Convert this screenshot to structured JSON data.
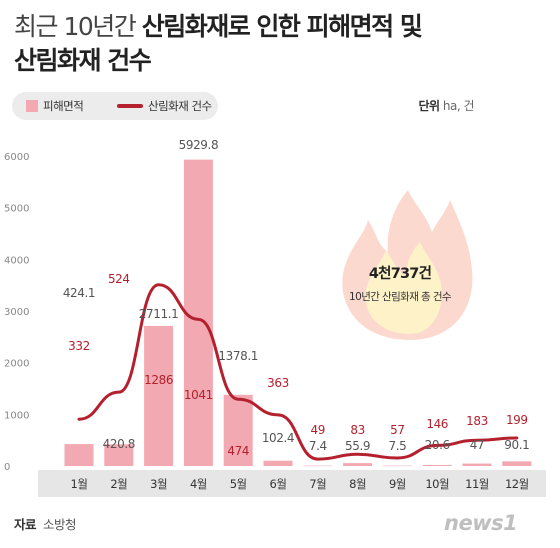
{
  "title": {
    "line1_light": "최근 10년간 ",
    "line1_bold": "산림화재로 인한 피해면적 및",
    "line2_bold": "산림화재 건수"
  },
  "legend": {
    "bar_label": "피해면적",
    "line_label": "산림화재 건수"
  },
  "unit": {
    "label": "단위",
    "value": "ha, 건"
  },
  "source": {
    "label": "자료",
    "value": "소방청"
  },
  "logo_text": "news1",
  "callout": {
    "number": "4천737건",
    "caption": "10년간 산림화재 총 건수"
  },
  "colors": {
    "bar": "#f2a9b2",
    "line": "#b5202e",
    "axis_band": "#e6e6e6",
    "flame_outer": "#fcd9cf",
    "flame_inner": "#fdf2c8"
  },
  "chart_data": {
    "type": "bar",
    "categories": [
      "1월",
      "2월",
      "3월",
      "4월",
      "5월",
      "6월",
      "7월",
      "8월",
      "9월",
      "10월",
      "11월",
      "12월"
    ],
    "series": [
      {
        "name": "피해면적",
        "type": "bar",
        "axis": "left",
        "values": [
          424.1,
          420.8,
          2711.1,
          5929.8,
          1378.1,
          102.4,
          7.4,
          55.9,
          7.5,
          20.6,
          47,
          90.1
        ]
      },
      {
        "name": "산림화재 건수",
        "type": "line",
        "axis": "right",
        "values": [
          332,
          524,
          1286,
          1041,
          474,
          363,
          49,
          83,
          57,
          146,
          183,
          199
        ]
      }
    ],
    "y_ticks": [
      "0",
      "1000",
      "2000",
      "3000",
      "4000",
      "5000",
      "6000"
    ],
    "ylim": [
      0,
      6000
    ],
    "grid": false,
    "legend_position": "top-left"
  }
}
